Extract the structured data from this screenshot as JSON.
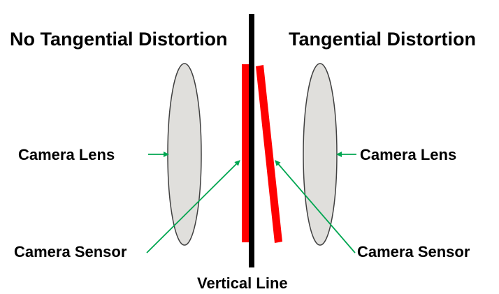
{
  "left_panel": {
    "title": "No Tangential Distortion",
    "lens_label": "Camera Lens",
    "sensor_label": "Camera Sensor"
  },
  "right_panel": {
    "title": "Tangential Distortion",
    "lens_label": "Camera Lens",
    "sensor_label": "Camera Sensor"
  },
  "center": {
    "vertical_line_label": "Vertical Line"
  },
  "colors": {
    "sensor": "#ff0000",
    "lens_fill": "#e0dfdc",
    "lens_stroke": "#404040",
    "arrow": "#00a651",
    "vertical_line": "#000000"
  }
}
